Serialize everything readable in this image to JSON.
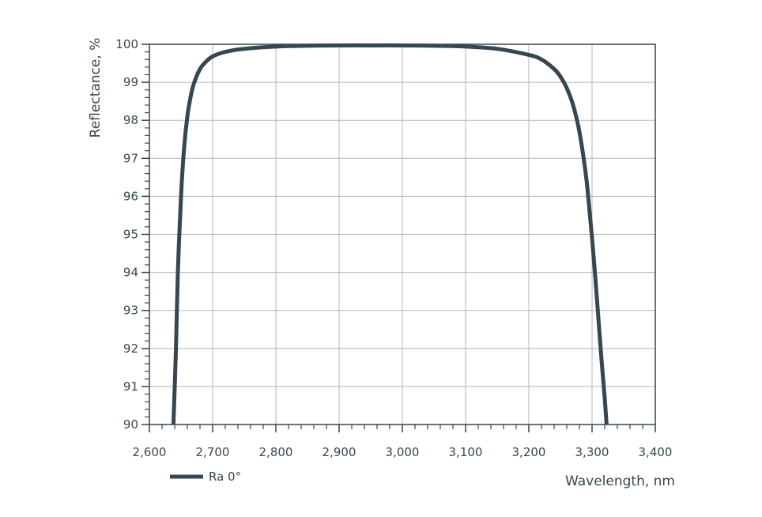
{
  "chart_data": {
    "type": "line",
    "title": "",
    "xlabel": "Wavelength, nm",
    "ylabel": "Reflectance, %",
    "xlim": [
      2600,
      3400
    ],
    "ylim": [
      90,
      100
    ],
    "x_ticks": [
      2600,
      2700,
      2800,
      2900,
      3000,
      3100,
      3200,
      3300,
      3400
    ],
    "x_tick_labels": [
      "2,600",
      "2,700",
      "2,800",
      "2,900",
      "3,000",
      "3,100",
      "3,200",
      "3,300",
      "3,400"
    ],
    "y_ticks": [
      90,
      91,
      92,
      93,
      94,
      95,
      96,
      97,
      98,
      99,
      100
    ],
    "y_tick_labels": [
      "90",
      "91",
      "92",
      "93",
      "94",
      "95",
      "96",
      "97",
      "98",
      "99",
      "100"
    ],
    "grid": true,
    "legend_position": "bottom-left",
    "series": [
      {
        "name": "Ra 0°",
        "color": "#37474f",
        "x": [
          2638,
          2642,
          2645,
          2650,
          2655,
          2660,
          2665,
          2670,
          2680,
          2690,
          2700,
          2720,
          2750,
          2800,
          2850,
          2900,
          2950,
          3000,
          3050,
          3100,
          3150,
          3200,
          3220,
          3240,
          3250,
          3260,
          3270,
          3280,
          3290,
          3295,
          3300,
          3305,
          3310,
          3315,
          3320,
          3323
        ],
        "y": [
          90.0,
          92.0,
          94.0,
          96.0,
          97.3,
          98.1,
          98.6,
          98.95,
          99.35,
          99.55,
          99.68,
          99.8,
          99.88,
          99.94,
          99.96,
          99.97,
          99.97,
          99.97,
          99.96,
          99.94,
          99.88,
          99.72,
          99.6,
          99.35,
          99.15,
          98.85,
          98.4,
          97.7,
          96.6,
          95.8,
          94.9,
          93.9,
          92.8,
          91.7,
          90.7,
          90.0
        ]
      }
    ]
  }
}
